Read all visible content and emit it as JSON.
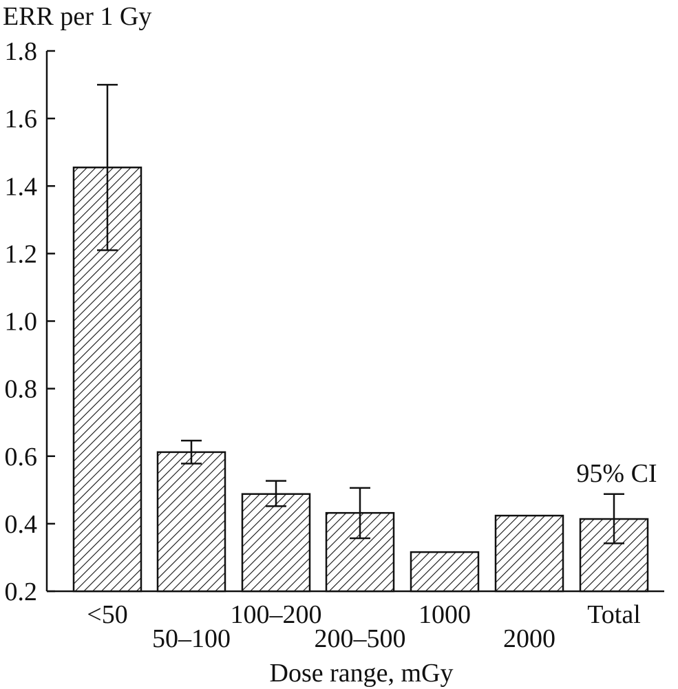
{
  "chart_data": {
    "type": "bar",
    "title": "",
    "ylabel": "ERR per 1 Gy",
    "xlabel": "Dose range, mGy",
    "ylim": [
      0.2,
      1.8
    ],
    "yticks": [
      "0.2",
      "0.4",
      "0.6",
      "0.8",
      "1.0",
      "1.2",
      "1.4",
      "1.6",
      "1.8"
    ],
    "categories": [
      "<50",
      "50–100",
      "100–200",
      "200–500",
      "1000",
      "2000",
      "Total"
    ],
    "values": [
      1.455,
      0.612,
      0.488,
      0.432,
      0.316,
      0.424,
      0.414
    ],
    "ci_lower": [
      1.21,
      0.578,
      0.452,
      0.357,
      null,
      null,
      0.342
    ],
    "ci_upper": [
      1.7,
      0.646,
      0.527,
      0.506,
      null,
      null,
      0.488
    ],
    "annotation": "95% CI",
    "grid": false,
    "legend": "none",
    "bar_fill": "diagonal-hatch",
    "colors": {
      "ink": "#111111",
      "background": "#ffffff"
    }
  }
}
